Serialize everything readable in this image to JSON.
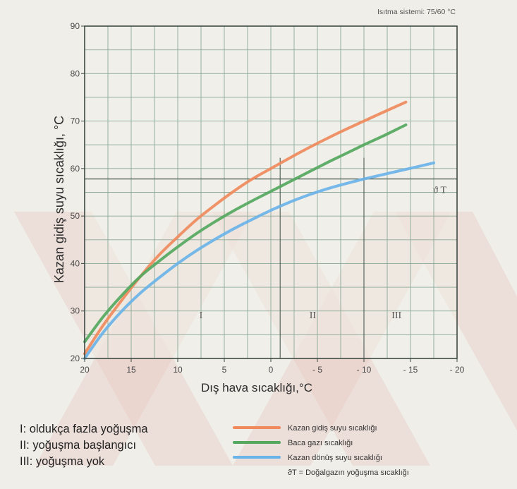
{
  "chart_data": {
    "type": "line",
    "title": "",
    "system_note": "Isıtma sistemi: 75/60 °C",
    "xlabel": "Dış hava sıcaklığı,°C",
    "ylabel": "Kazan gidiş suyu sıcaklığı, °C",
    "xlim": [
      20,
      -20
    ],
    "ylim": [
      20,
      90
    ],
    "x_ticks": [
      {
        "value": 20,
        "label": "20"
      },
      {
        "value": 15,
        "label": "15"
      },
      {
        "value": 10,
        "label": "10"
      },
      {
        "value": 5,
        "label": "5"
      },
      {
        "value": 0,
        "label": "0"
      },
      {
        "value": -5,
        "label": "- 5"
      },
      {
        "value": -10,
        "label": "- 10"
      },
      {
        "value": -15,
        "label": "- 15"
      },
      {
        "value": -20,
        "label": "- 20"
      }
    ],
    "y_ticks": [
      20,
      30,
      40,
      50,
      60,
      70,
      80,
      90
    ],
    "grid": true,
    "dew_point": {
      "value": 57.8,
      "label": "ϑ T"
    },
    "region_boundaries_x": [
      -1,
      -10
    ],
    "regions": [
      {
        "label": "I",
        "x": 7.5
      },
      {
        "label": "II",
        "x": -4.5
      },
      {
        "label": "III",
        "x": -13.5
      }
    ],
    "region_legend": [
      "I:  oldukça fazla yoğuşma",
      "II:  yoğuşma başlangıcı",
      "III:  yoğuşma yok"
    ],
    "series": [
      {
        "name": "Kazan gidiş suyu sıcaklığı",
        "color": "#f08a5c",
        "x": [
          20,
          18,
          16,
          14,
          12,
          10,
          8,
          6,
          4,
          2,
          0,
          -2,
          -4,
          -6,
          -8,
          -10,
          -12,
          -14.5
        ],
        "y": [
          21,
          27,
          32.3,
          37.3,
          41.8,
          45.6,
          49.2,
          52.3,
          55.2,
          57.8,
          60,
          62.2,
          64.3,
          66.3,
          68.2,
          70,
          71.8,
          74
        ]
      },
      {
        "name": "Baca gazı sıcaklığı",
        "color": "#55a860",
        "x": [
          20,
          18,
          16,
          14,
          12,
          10,
          8,
          6,
          4,
          2,
          0,
          -2,
          -4,
          -6,
          -8,
          -10,
          -12,
          -14.5
        ],
        "y": [
          23.5,
          28.8,
          33.3,
          37.3,
          40.5,
          43.5,
          46.3,
          48.8,
          51.1,
          53.2,
          55.2,
          57.2,
          59.2,
          61.2,
          63.1,
          65,
          66.8,
          69.2
        ]
      },
      {
        "name": "Kazan dönüş suyu sıcaklığı",
        "color": "#6ab3e8",
        "x": [
          20,
          18,
          16,
          14,
          12,
          10,
          8,
          6,
          4,
          2,
          0,
          -2,
          -4,
          -6,
          -8,
          -10,
          -12,
          -14,
          -16,
          -17.5
        ],
        "y": [
          20,
          25.5,
          30,
          33.8,
          37,
          40,
          42.7,
          45.1,
          47.3,
          49.3,
          51.2,
          52.9,
          54.4,
          55.7,
          56.8,
          57.8,
          58.7,
          59.6,
          60.5,
          61.2
        ]
      }
    ]
  }
}
